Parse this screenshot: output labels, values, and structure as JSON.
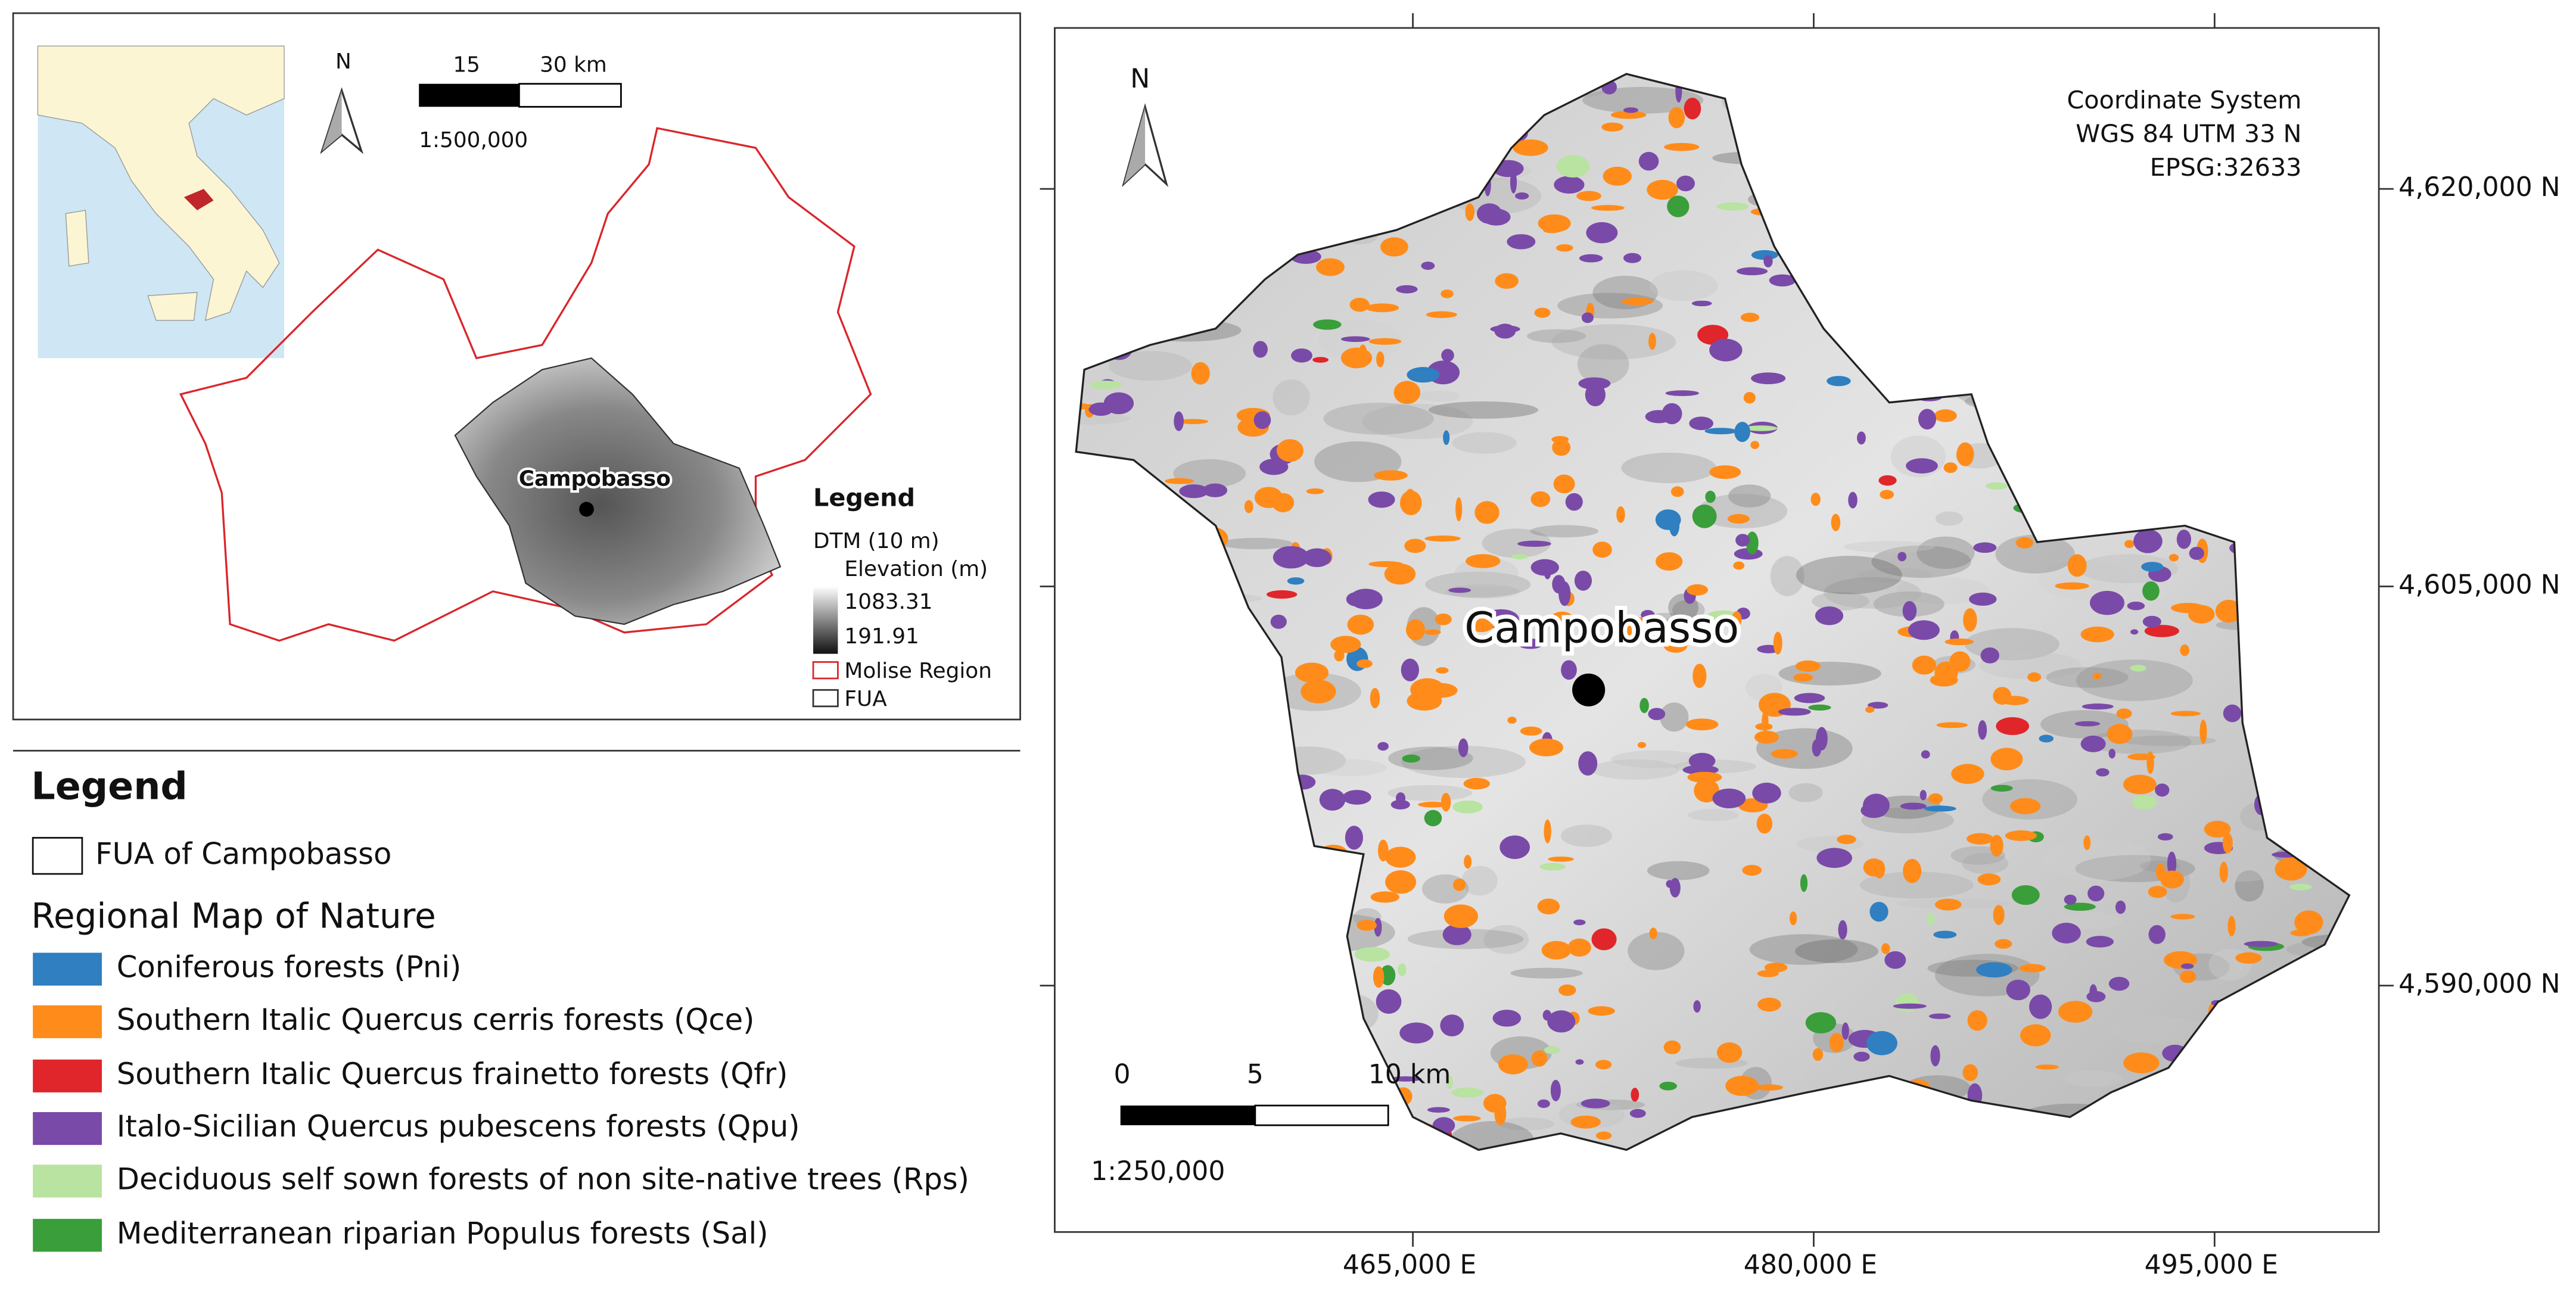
{
  "inset_map": {
    "north": "N",
    "scale_labels": [
      "15",
      "30 km"
    ],
    "scale_ratio": "1:500,000",
    "city": "Campobasso",
    "legend": {
      "title": "Legend",
      "dtm": "DTM (10 m)",
      "elevation": "Elevation (m)",
      "max": "1083.31",
      "min": "191.91",
      "molise": "Molise Region",
      "fua": "FUA"
    }
  },
  "legend": {
    "title": "Legend",
    "fua": "FUA of Campobasso",
    "section": "Regional Map of Nature",
    "items": [
      {
        "label": "Coniferous forests (Pni)",
        "color": "#2f7fc1"
      },
      {
        "label": "Southern Italic Quercus cerris forests (Qce)",
        "color": "#ff8c1a"
      },
      {
        "label": "Southern Italic Quercus frainetto forests (Qfr)",
        "color": "#e0262b"
      },
      {
        "label": "Italo-Sicilian Quercus pubescens forests (Qpu)",
        "color": "#7a4aa8"
      },
      {
        "label": "Deciduous self sown forests of non site-native trees (Rps)",
        "color": "#b8e3a0"
      },
      {
        "label": "Mediterranean riparian Populus forests (Sal)",
        "color": "#3a9e3a"
      }
    ]
  },
  "main_map": {
    "north": "N",
    "coordinate_system": [
      "Coordinate System",
      "WGS 84 UTM 33 N",
      "EPSG:32633"
    ],
    "city": "Campobasso",
    "scale_labels": [
      "0",
      "5",
      "10 km"
    ],
    "scale_ratio": "1:250,000",
    "x_labels": [
      "465,000 E",
      "480,000 E",
      "495,000 E"
    ],
    "y_labels": [
      "4,620,000 N",
      "4,605,000 N",
      "4,590,000 N"
    ]
  }
}
